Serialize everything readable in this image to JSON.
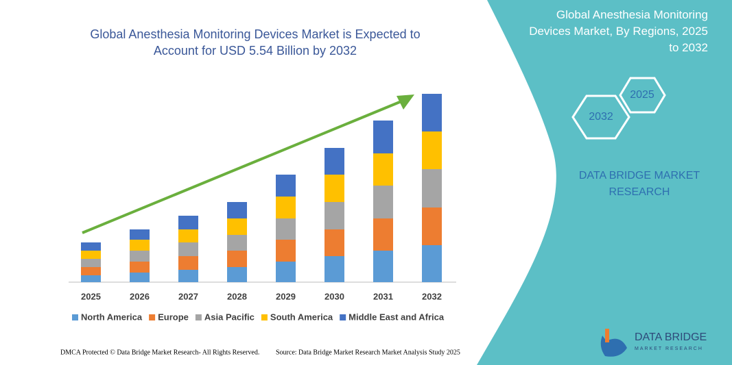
{
  "chart_data": {
    "type": "stacked_bar",
    "title": "Global Anesthesia Monitoring Devices Market is Expected to Account for USD 5.54 Billion by 2032",
    "categories": [
      "2025",
      "2026",
      "2027",
      "2028",
      "2029",
      "2030",
      "2031",
      "2032"
    ],
    "series": [
      {
        "name": "North America",
        "color": "#5b9bd5",
        "values": [
          10,
          14,
          18,
          22,
          30,
          38,
          46,
          54
        ]
      },
      {
        "name": "Europe",
        "color": "#ed7d31",
        "values": [
          12,
          16,
          20,
          24,
          32,
          39,
          47,
          55
        ]
      },
      {
        "name": "Asia Pacific",
        "color": "#a5a5a5",
        "values": [
          12,
          16,
          20,
          23,
          31,
          40,
          48,
          56
        ]
      },
      {
        "name": "South America",
        "color": "#ffc000",
        "values": [
          12,
          16,
          19,
          24,
          32,
          40,
          47,
          55
        ]
      },
      {
        "name": "Middle East and Africa",
        "color": "#4472c4",
        "values": [
          12,
          15,
          20,
          24,
          32,
          39,
          48,
          55
        ]
      }
    ],
    "ylim": [
      0,
      280
    ]
  },
  "panel": {
    "title": "Global Anesthesia Monitoring Devices Market, By Regions, 2025 to 2032",
    "hex_start": "2025",
    "hex_end": "2032",
    "brand": "DATA BRIDGE MARKET RESEARCH"
  },
  "logo": {
    "name": "DATA BRIDGE",
    "tagline": "MARKET RESEARCH"
  },
  "footer": {
    "left": "DMCA Protected © Data Bridge Market Research- All Rights Reserved.",
    "right": "Source: Data Bridge Market Research Market Analysis Study 2025"
  }
}
